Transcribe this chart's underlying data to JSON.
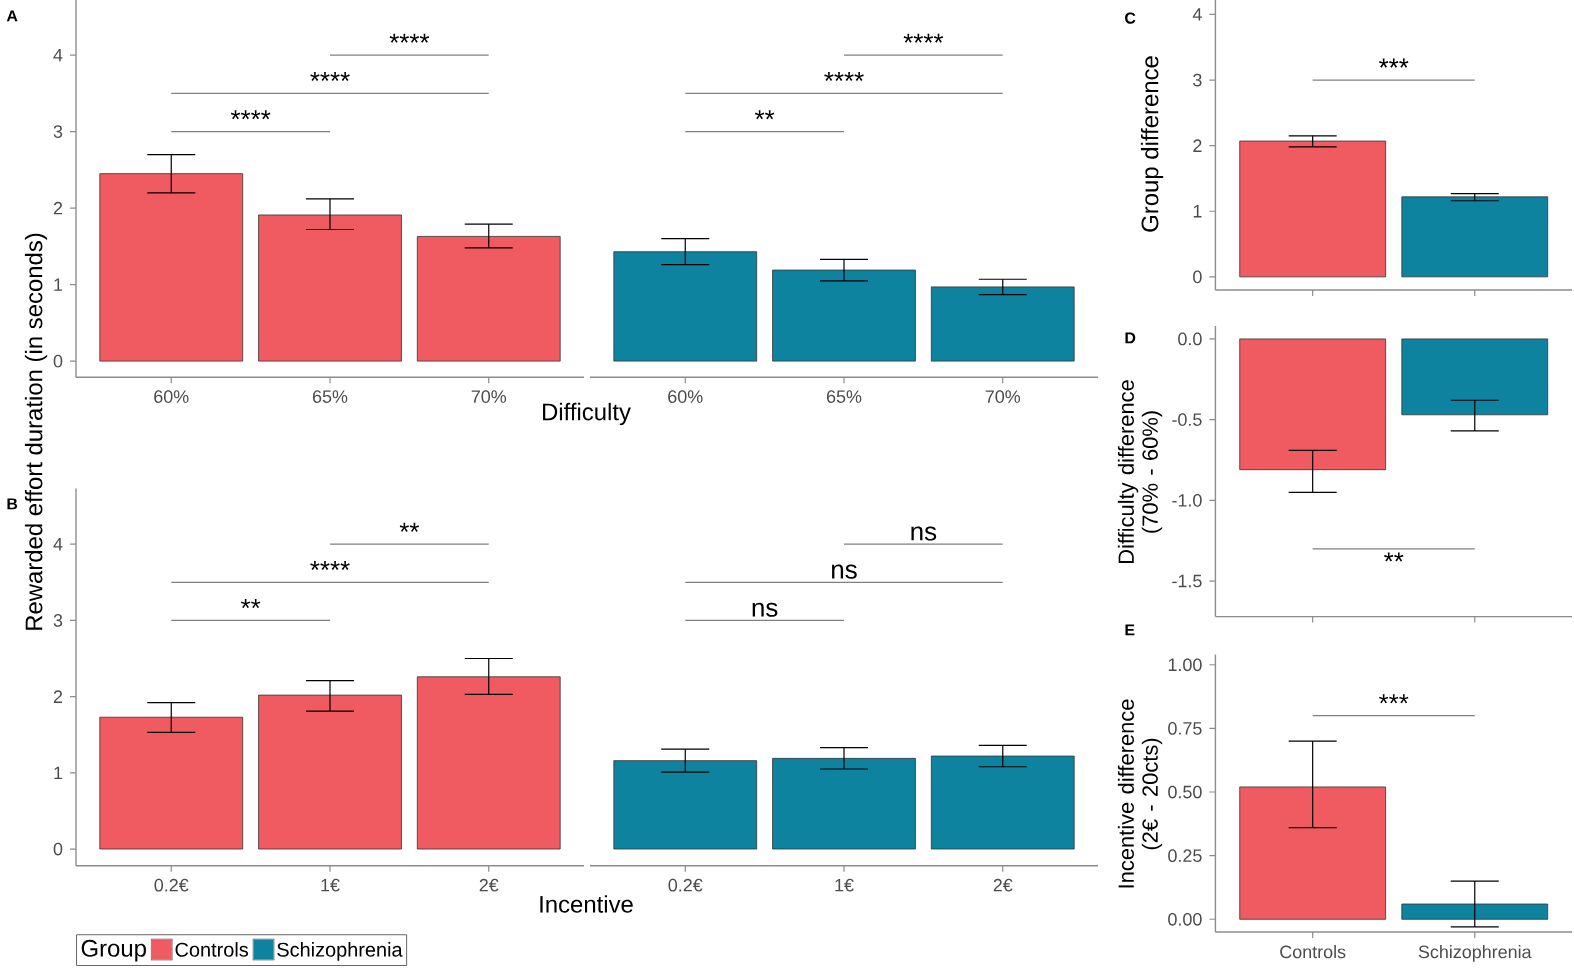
{
  "chart_data": [
    {
      "type": "bar",
      "title": "A",
      "xlabel": "Difficulty",
      "ylabel": "Rewarded effort duration (in seconds)",
      "categories": [
        "60%",
        "65%",
        "70%",
        "60%",
        "65%",
        "70%"
      ],
      "series": [
        {
          "color": "#f05a61",
          "values": [
            2.45,
            1.91,
            1.63,
            null,
            null,
            null
          ],
          "errors": [
            [
              2.2,
              2.7
            ],
            [
              1.72,
              2.12
            ],
            [
              1.48,
              1.79
            ],
            null,
            null,
            null
          ]
        },
        {
          "color": "#0e83a0",
          "values": [
            null,
            null,
            null,
            1.43,
            1.19,
            0.97
          ],
          "errors": [
            null,
            null,
            null,
            [
              1.26,
              1.6
            ],
            [
              1.05,
              1.33
            ],
            [
              0.87,
              1.07
            ]
          ]
        }
      ],
      "ylim": [
        -0.21,
        4.72
      ],
      "yticks": [
        0,
        1,
        2,
        3,
        4
      ],
      "annotations": [
        "****",
        "****",
        "****",
        "**",
        "****",
        "****"
      ]
    },
    {
      "type": "bar",
      "title": "B",
      "xlabel": "Incentive",
      "categories": [
        "0.2€",
        "1€",
        "2€",
        "0.2€",
        "1€",
        "2€"
      ],
      "series": [
        {
          "name": "Controls",
          "color": "#f05a61",
          "values": [
            1.73,
            2.02,
            2.26,
            null,
            null,
            null
          ],
          "errors": [
            [
              1.53,
              1.92
            ],
            [
              1.81,
              2.21
            ],
            [
              2.03,
              2.5
            ],
            null,
            null,
            null
          ]
        },
        {
          "name": "Schizophrenia",
          "color": "#0e83a0",
          "values": [
            null,
            null,
            null,
            1.16,
            1.19,
            1.22
          ],
          "errors": [
            null,
            null,
            null,
            [
              1.01,
              1.31
            ],
            [
              1.05,
              1.33
            ],
            [
              1.08,
              1.36
            ]
          ]
        }
      ],
      "ylim": [
        -0.22,
        4.73
      ],
      "yticks": [
        0,
        1,
        2,
        3,
        4
      ],
      "legend": "bottom left",
      "legend_title": "Group",
      "annotations": [
        "**",
        "****",
        "**",
        "ns",
        "ns",
        "ns"
      ]
    },
    {
      "type": "bar",
      "title": "C",
      "ylabel": "Group difference",
      "categories": [
        null,
        null
      ],
      "values": [
        2.07,
        1.22
      ],
      "colors": [
        "#f05a61",
        "#0e83a0"
      ],
      "errors": [
        [
          1.98,
          2.15
        ],
        [
          1.16,
          1.27
        ]
      ],
      "ylim": [
        -0.2,
        4.22
      ],
      "yticks": [
        0,
        1,
        2,
        3,
        4
      ],
      "annotations": [
        "***"
      ]
    },
    {
      "type": "bar",
      "title": "D",
      "ylabel": "Difficulty difference (70% - 60%)",
      "categories": [
        null,
        null
      ],
      "values": [
        -0.81,
        -0.47
      ],
      "colors": [
        "#f05a61",
        "#0e83a0"
      ],
      "errors": [
        [
          -0.95,
          -0.69
        ],
        [
          -0.57,
          -0.38
        ]
      ],
      "ylim": [
        -1.72,
        0.08
      ],
      "yticks": [
        {
          "value": 0,
          "label": "0.0"
        },
        {
          "value": -0.5,
          "label": "-0.5"
        },
        {
          "value": -1,
          "label": "-1.0"
        },
        {
          "value": -1.5,
          "label": "-1.5"
        }
      ],
      "annotations": [
        "**"
      ]
    },
    {
      "type": "bar",
      "title": "E",
      "ylabel": "Incentive difference (2€ - 20cts)",
      "categories": [
        "Controls",
        "Schizophrenia"
      ],
      "values": [
        0.52,
        0.06
      ],
      "colors": [
        "#f05a61",
        "#0e83a0"
      ],
      "errors": [
        [
          0.36,
          0.7
        ],
        [
          -0.03,
          0.15
        ]
      ],
      "ylim": [
        -0.05,
        1.04
      ],
      "yticks": [
        {
          "value": 0,
          "label": "0.00"
        },
        {
          "value": 0.25,
          "label": "0.25"
        },
        {
          "value": 0.5,
          "label": "0.50"
        },
        {
          "value": 0.75,
          "label": "0.75"
        },
        {
          "value": 1,
          "label": "1.00"
        }
      ],
      "annotations": [
        "***"
      ]
    }
  ]
}
